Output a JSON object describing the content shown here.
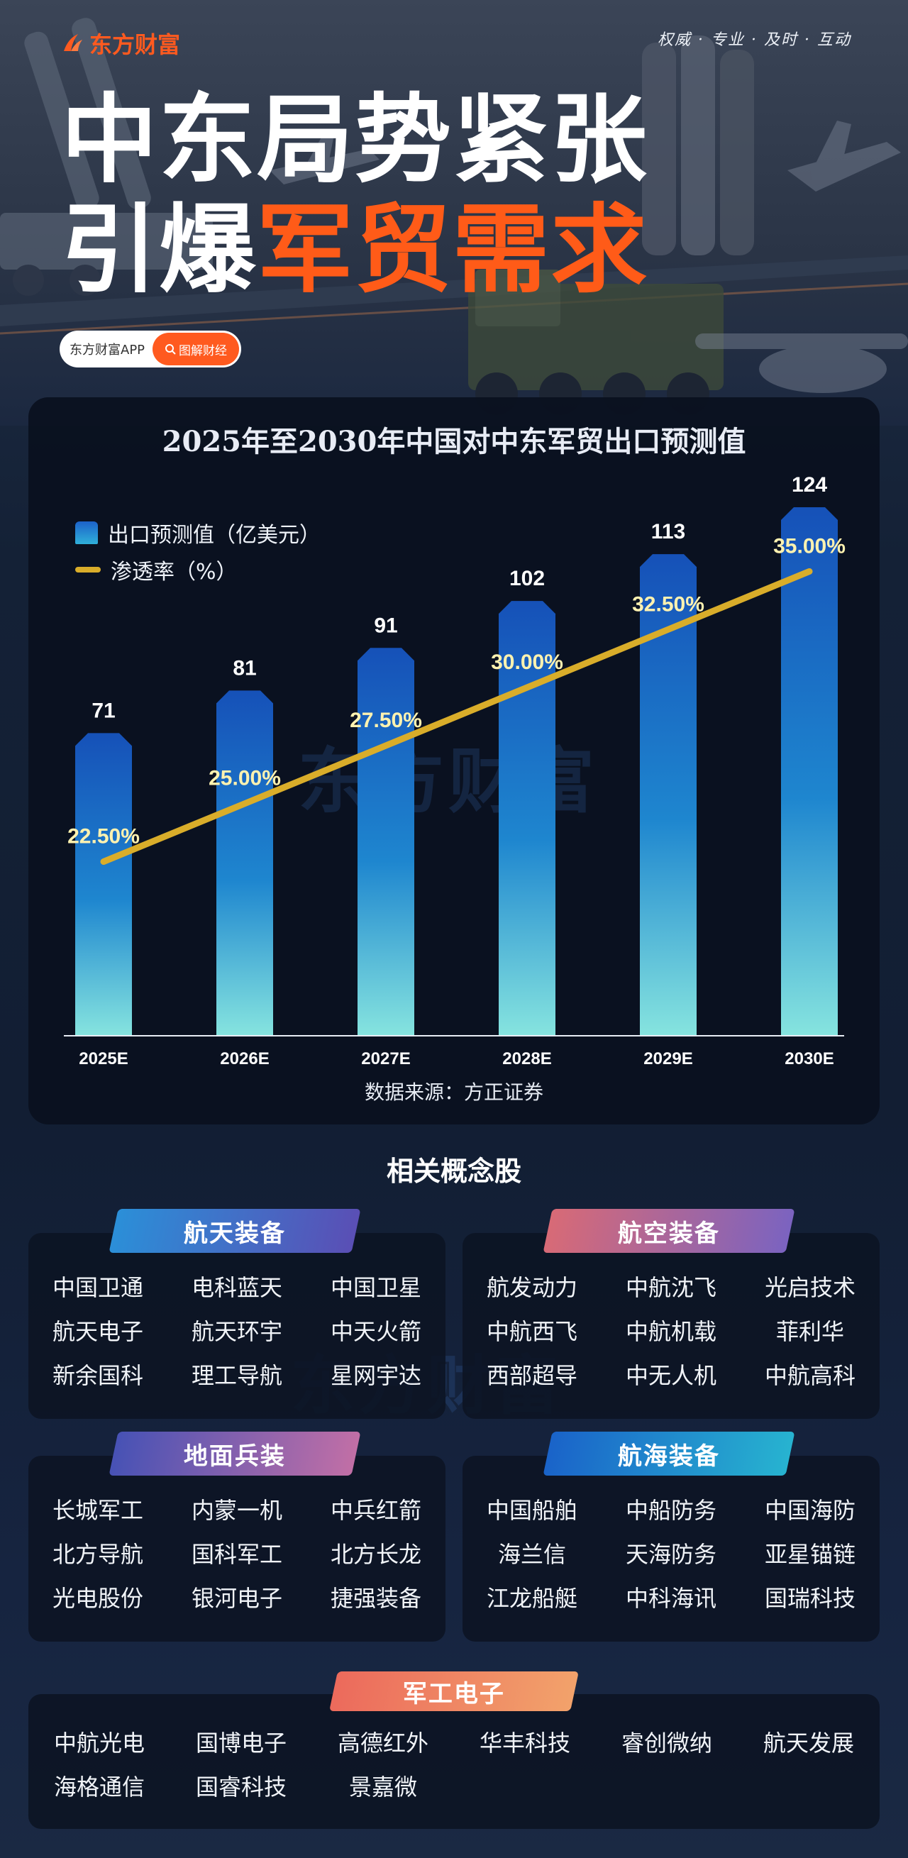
{
  "header": {
    "brand": "东方财富",
    "motto": "权威 · 专业 · 及时 · 互动",
    "title_line1": "中东局势紧张",
    "title_line2_white": "引爆",
    "title_line2_orange": "军贸需求",
    "app_name": "东方财富APP",
    "app_button": "图解财经"
  },
  "colors": {
    "accent": "#ff5a1f",
    "bar_top": "#1c5cc6",
    "bar_bottom": "#7fe0e0",
    "line": "#d9ad2a",
    "line_label": "#fff2b0"
  },
  "chart_data": {
    "type": "bar",
    "title": "2025年至2030年中国对中东军贸出口预测值",
    "categories": [
      "2025E",
      "2026E",
      "2027E",
      "2028E",
      "2029E",
      "2030E"
    ],
    "series": [
      {
        "name": "出口预测值（亿美元）",
        "type": "bar",
        "values": [
          71,
          81,
          91,
          102,
          113,
          124
        ]
      },
      {
        "name": "渗透率（%）",
        "type": "line",
        "values": [
          22.5,
          25.0,
          27.5,
          30.0,
          32.5,
          35.0
        ]
      }
    ],
    "bar_labels": [
      "71",
      "81",
      "91",
      "102",
      "113",
      "124"
    ],
    "line_labels": [
      "22.50%",
      "25.00%",
      "27.50%",
      "30.00%",
      "32.50%",
      "35.00%"
    ],
    "bar_ylim": [
      0,
      124
    ],
    "line_ylim": [
      15,
      37
    ],
    "legend": [
      "出口预测值（亿美元）",
      "渗透率（%）"
    ],
    "legend_position": "top-left",
    "source": "数据来源：方正证券",
    "watermark": "东方财富"
  },
  "concepts": {
    "title": "相关概念股",
    "watermark": "东方财富",
    "cards": [
      {
        "name": "航天装备",
        "items": [
          "中国卫通",
          "电科蓝天",
          "中国卫星",
          "航天电子",
          "航天环宇",
          "中天火箭",
          "新余国科",
          "理工导航",
          "星网宇达"
        ]
      },
      {
        "name": "航空装备",
        "items": [
          "航发动力",
          "中航沈飞",
          "光启技术",
          "中航西飞",
          "中航机载",
          "菲利华",
          "西部超导",
          "中无人机",
          "中航高科"
        ]
      },
      {
        "name": "地面兵装",
        "items": [
          "长城军工",
          "内蒙一机",
          "中兵红箭",
          "北方导航",
          "国科军工",
          "北方长龙",
          "光电股份",
          "银河电子",
          "捷强装备"
        ]
      },
      {
        "name": "航海装备",
        "items": [
          "中国船舶",
          "中船防务",
          "中国海防",
          "海兰信",
          "天海防务",
          "亚星锚链",
          "江龙船艇",
          "中科海讯",
          "国瑞科技"
        ]
      },
      {
        "name": "军工电子",
        "items": [
          "中航光电",
          "国博电子",
          "高德红外",
          "华丰科技",
          "睿创微纳",
          "航天发展",
          "海格通信",
          "国睿科技",
          "景嘉微"
        ]
      }
    ]
  }
}
